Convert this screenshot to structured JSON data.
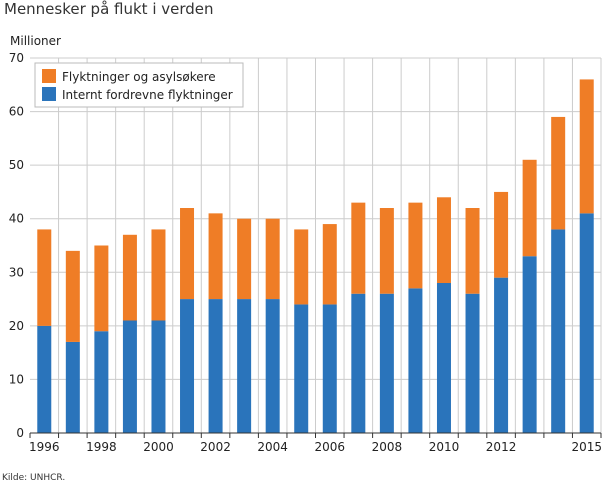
{
  "title": "Mennesker på flukt i verden",
  "unit_label": "Millioner",
  "source": "Kilde: UNHCR.",
  "colors": {
    "bottom": "#2a74bb",
    "top": "#ef7d26",
    "grid": "#cccccc",
    "axis": "#333333"
  },
  "chart_data": {
    "type": "bar",
    "stacked": true,
    "categories": [
      "1996",
      "1997",
      "1998",
      "1999",
      "2000",
      "2001",
      "2002",
      "2003",
      "2004",
      "2005",
      "2006",
      "2007",
      "2008",
      "2009",
      "2010",
      "2011",
      "2012",
      "2013",
      "2014",
      "2015"
    ],
    "x_tick_labels": [
      "1996",
      "",
      "1998",
      "",
      "2000",
      "",
      "2002",
      "",
      "2004",
      "",
      "2006",
      "",
      "2008",
      "",
      "2010",
      "",
      "2012",
      "",
      "",
      "2015"
    ],
    "series": [
      {
        "name": "Internt fordrevne flyktninger",
        "values": [
          20,
          17,
          19,
          21,
          21,
          25,
          25,
          25,
          25,
          24,
          24,
          26,
          26,
          27,
          28,
          26,
          29,
          33,
          38,
          41
        ]
      },
      {
        "name": "Flyktninger og asylsøkere",
        "values": [
          18,
          17,
          16,
          16,
          17,
          17,
          16,
          15,
          15,
          14,
          15,
          17,
          16,
          16,
          16,
          16,
          16,
          18,
          21,
          25
        ]
      }
    ],
    "ylim": [
      0,
      70
    ],
    "yticks": [
      0,
      10,
      20,
      30,
      40,
      50,
      60,
      70
    ],
    "ylabel": "Millioner",
    "grid": true,
    "legend_position": "top-left",
    "legend_order": [
      "Flyktninger og asylsøkere",
      "Internt fordrevne flyktninger"
    ]
  }
}
